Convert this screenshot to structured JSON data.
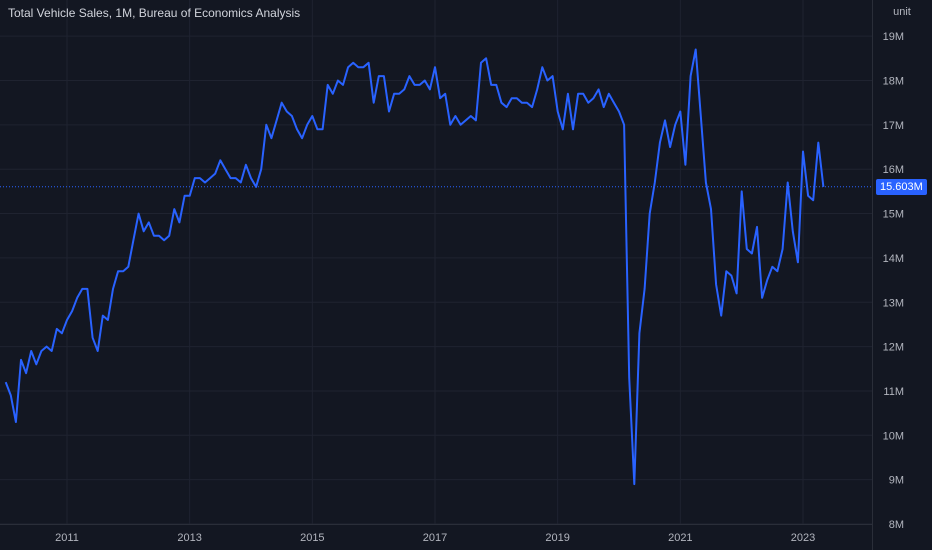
{
  "header": {
    "title": "Total Vehicle Sales, 1M, Bureau of Economics Analysis",
    "unit_label": "unit"
  },
  "colors": {
    "background": "#131722",
    "grid": "#1f2330",
    "line": "#2962ff",
    "axis_text": "#b2b5be",
    "badge": "#2962ff"
  },
  "last_value_label": "15.603M",
  "chart_data": {
    "type": "line",
    "title": "Total Vehicle Sales, 1M, Bureau of Economics Analysis",
    "xlabel": "",
    "ylabel": "unit",
    "x_ticks": [
      "2011",
      "2013",
      "2015",
      "2017",
      "2019",
      "2021",
      "2023"
    ],
    "y_ticks": [
      {
        "value": 8,
        "label": "8M"
      },
      {
        "value": 9,
        "label": "9M"
      },
      {
        "value": 10,
        "label": "10M"
      },
      {
        "value": 11,
        "label": "11M"
      },
      {
        "value": 12,
        "label": "12M"
      },
      {
        "value": 13,
        "label": "13M"
      },
      {
        "value": 14,
        "label": "14M"
      },
      {
        "value": 15,
        "label": "15M"
      },
      {
        "value": 16,
        "label": "16M"
      },
      {
        "value": 17,
        "label": "17M"
      },
      {
        "value": 18,
        "label": "18M"
      },
      {
        "value": 19,
        "label": "19M"
      }
    ],
    "ylim": [
      8,
      19.2
    ],
    "xlim": [
      "2009-11",
      "2024-01"
    ],
    "grid": true,
    "last_value": 15.603,
    "series": [
      {
        "start": "2010-01",
        "frequency": "monthly",
        "values": [
          11.2,
          10.9,
          10.3,
          11.7,
          11.4,
          11.9,
          11.6,
          11.9,
          12.0,
          11.9,
          12.4,
          12.3,
          12.6,
          12.8,
          13.1,
          13.3,
          13.3,
          12.2,
          11.9,
          12.7,
          12.6,
          13.3,
          13.7,
          13.7,
          13.8,
          14.4,
          15.0,
          14.6,
          14.8,
          14.5,
          14.5,
          14.4,
          14.5,
          15.1,
          14.8,
          15.4,
          15.4,
          15.8,
          15.8,
          15.7,
          15.8,
          15.9,
          16.2,
          16.0,
          15.8,
          15.8,
          15.7,
          16.1,
          15.8,
          15.6,
          16.0,
          17.0,
          16.7,
          17.1,
          17.5,
          17.3,
          17.2,
          16.9,
          16.7,
          17.0,
          17.2,
          16.9,
          16.9,
          17.9,
          17.7,
          18.0,
          17.9,
          18.3,
          18.4,
          18.3,
          18.3,
          18.4,
          17.5,
          18.1,
          18.1,
          17.3,
          17.7,
          17.7,
          17.8,
          18.1,
          17.9,
          17.9,
          18.0,
          17.8,
          18.3,
          17.6,
          17.7,
          17.0,
          17.2,
          17.0,
          17.1,
          17.2,
          17.1,
          18.4,
          18.5,
          17.9,
          17.9,
          17.5,
          17.4,
          17.6,
          17.6,
          17.5,
          17.5,
          17.4,
          17.8,
          18.3,
          18.0,
          18.1,
          17.3,
          16.9,
          17.7,
          16.9,
          17.7,
          17.7,
          17.5,
          17.6,
          17.8,
          17.4,
          17.7,
          17.5,
          17.3,
          17.0,
          11.3,
          8.9,
          12.3,
          13.3,
          15.0,
          15.7,
          16.6,
          17.1,
          16.5,
          17.0,
          17.3,
          16.1,
          18.1,
          18.7,
          17.2,
          15.7,
          15.1,
          13.4,
          12.7,
          13.7,
          13.6,
          13.2,
          15.5,
          14.2,
          14.1,
          14.7,
          13.1,
          13.5,
          13.8,
          13.7,
          14.2,
          15.7,
          14.6,
          13.9,
          16.4,
          15.4,
          15.3,
          16.6,
          15.6
        ]
      }
    ]
  }
}
